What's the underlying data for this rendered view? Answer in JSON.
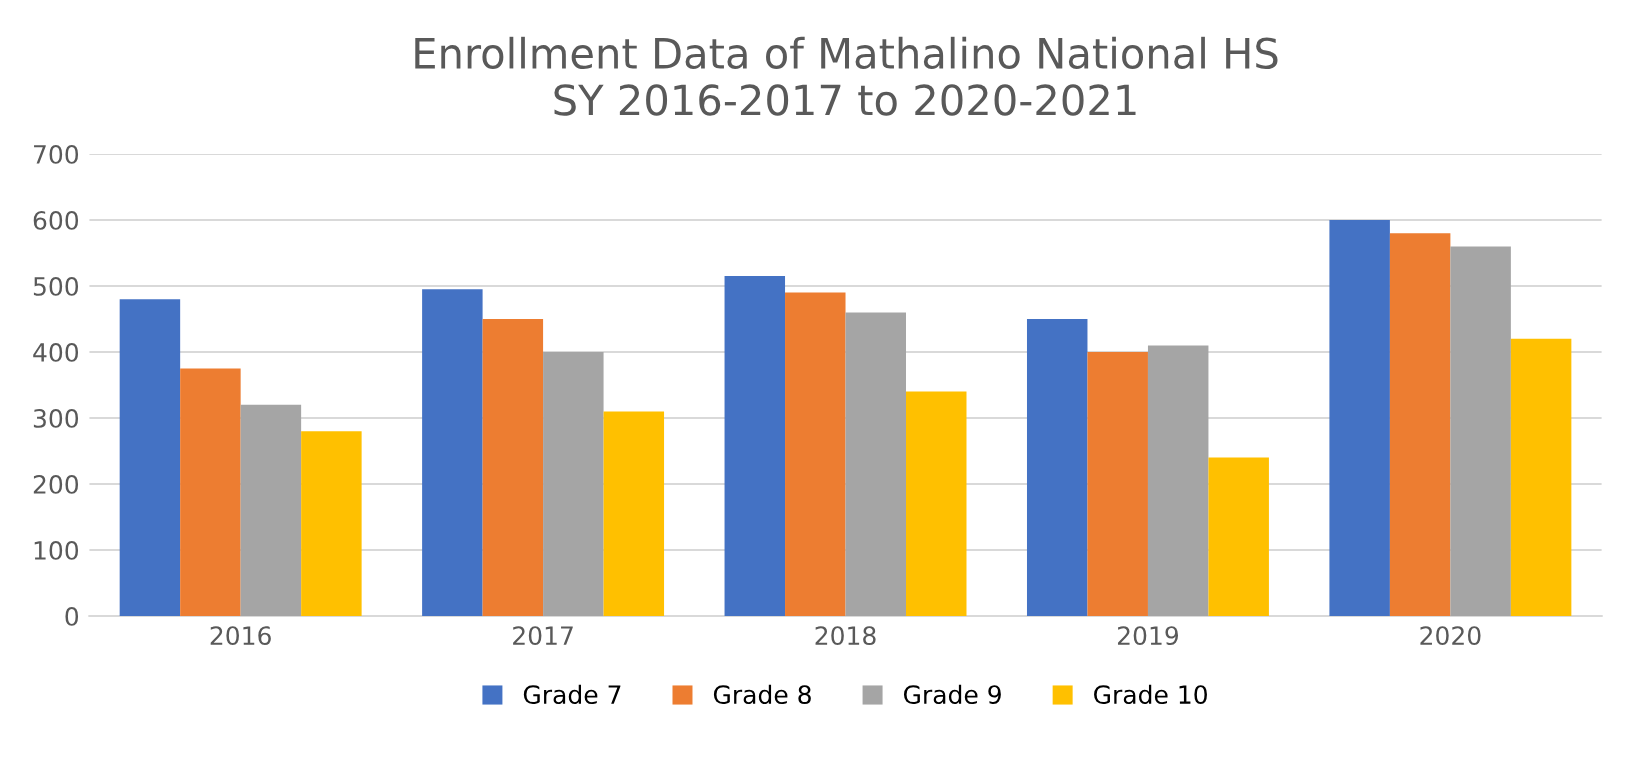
{
  "chart_data": {
    "type": "bar",
    "title": "Enrollment Data of Mathalino National HS\nSY 2016-2017 to 2020-2021",
    "categories": [
      "2016",
      "2017",
      "2018",
      "2019",
      "2020"
    ],
    "series": [
      {
        "name": "Grade 7",
        "color": "#4472c4",
        "values": [
          480,
          495,
          515,
          450,
          600
        ]
      },
      {
        "name": "Grade 8",
        "color": "#ed7d31",
        "values": [
          375,
          450,
          490,
          400,
          580
        ]
      },
      {
        "name": "Grade 9",
        "color": "#a5a5a5",
        "values": [
          320,
          400,
          460,
          410,
          560
        ]
      },
      {
        "name": "Grade 10",
        "color": "#ffc000",
        "values": [
          280,
          310,
          340,
          240,
          420
        ]
      }
    ],
    "ylim": [
      0,
      700
    ],
    "yticks": [
      0,
      100,
      200,
      300,
      400,
      500,
      600,
      700
    ],
    "grid": "y",
    "legend": "bottom"
  }
}
